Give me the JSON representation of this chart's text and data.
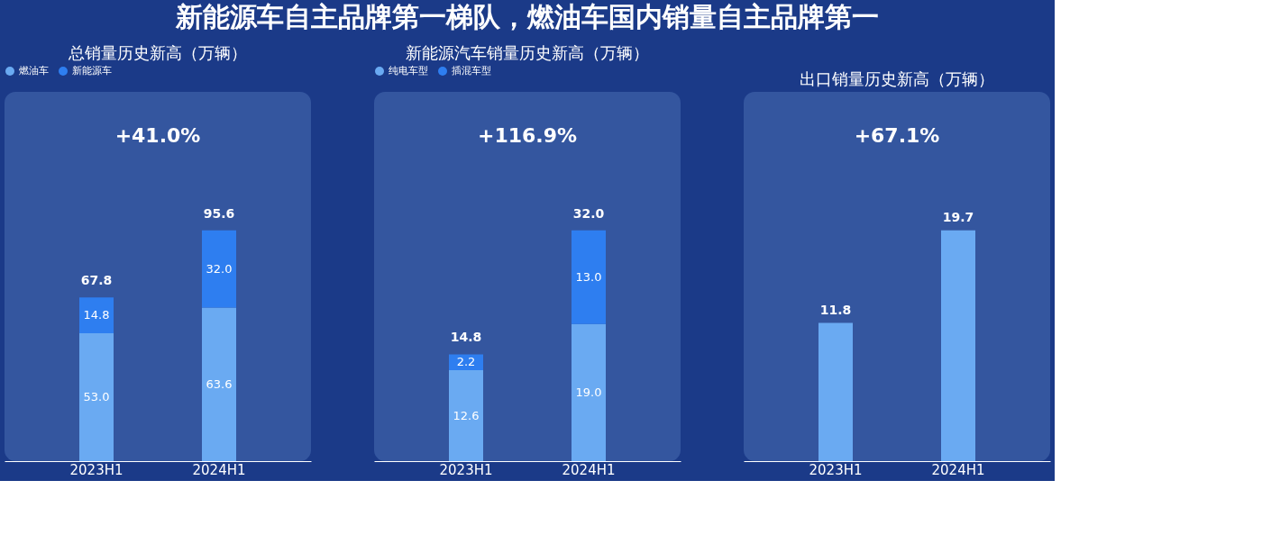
{
  "chart_data": [
    {
      "type": "bar",
      "title": "新能源车自主品牌第一梯队，燃油车国内销量自主品牌第一",
      "subtitle": "总销量历史新高（万辆）",
      "categories": [
        "2023H1",
        "2024H1"
      ],
      "stacked": true,
      "totals": [
        "67.8",
        "95.6"
      ],
      "legend": "top",
      "grid": false,
      "annotations": [
        "+41.0%"
      ],
      "series": [
        {
          "name": "燃油车",
          "color": "#6aaaf2",
          "values": [
            53.0,
            63.6
          ],
          "value_labels": [
            "53.0",
            "63.6"
          ]
        },
        {
          "name": "新能源车",
          "color": "#2e7ef0",
          "values": [
            14.8,
            32.0
          ],
          "value_labels": [
            "14.8",
            "32.0"
          ]
        }
      ]
    },
    {
      "type": "bar",
      "subtitle": "新能源汽车销量历史新高（万辆）",
      "categories": [
        "2023H1",
        "2024H1"
      ],
      "stacked": true,
      "totals": [
        "14.8",
        "32.0"
      ],
      "legend": "top",
      "grid": false,
      "annotations": [
        "+116.9%"
      ],
      "series": [
        {
          "name": "纯电车型",
          "color": "#6aaaf2",
          "values": [
            12.6,
            19.0
          ],
          "value_labels": [
            "12.6",
            "19.0"
          ]
        },
        {
          "name": "插混车型",
          "color": "#2e7ef0",
          "values": [
            2.2,
            13.0
          ],
          "value_labels": [
            "2.2",
            "13.0"
          ]
        }
      ]
    },
    {
      "type": "bar",
      "subtitle": "出口销量历史新高（万辆）",
      "categories": [
        "2023H1",
        "2024H1"
      ],
      "grid": false,
      "annotations": [
        "+67.1%"
      ],
      "values": [
        11.8,
        19.7
      ],
      "value_labels": [
        "11.8",
        "19.7"
      ],
      "color": "#6aaaf2"
    }
  ]
}
